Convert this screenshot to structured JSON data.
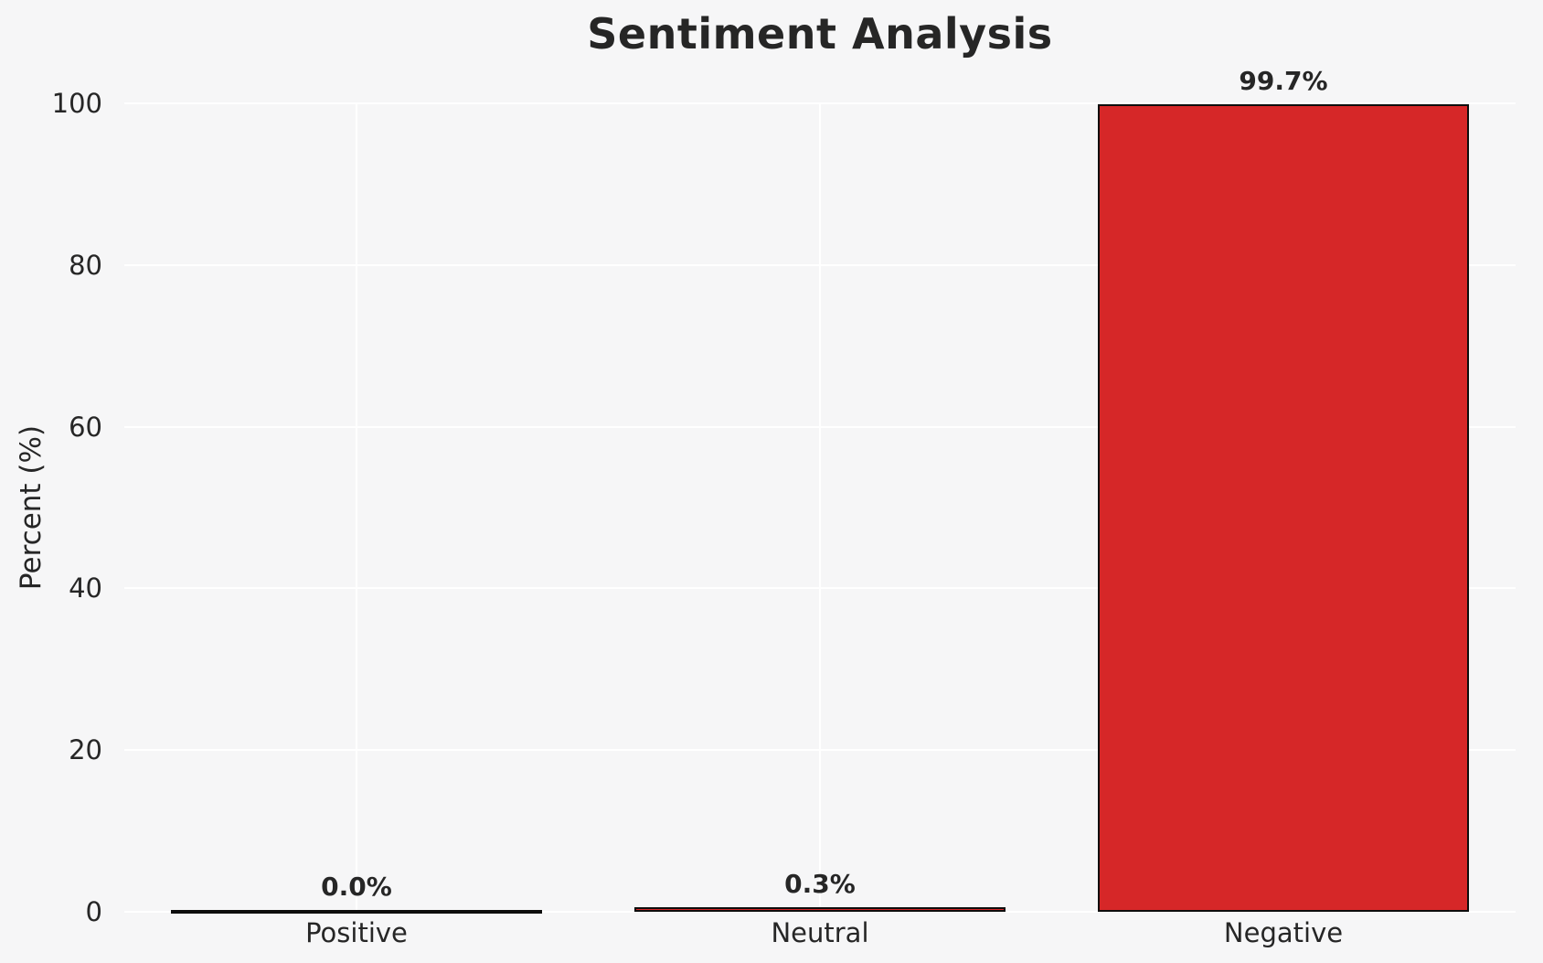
{
  "chart_data": {
    "type": "bar",
    "title": "Sentiment Analysis",
    "xlabel": "",
    "ylabel": "Percent (%)",
    "categories": [
      "Positive",
      "Neutral",
      "Negative"
    ],
    "values": [
      0.0,
      0.3,
      99.7
    ],
    "bar_labels": [
      "0.0%",
      "0.3%",
      "99.7%"
    ],
    "yticks": [
      0,
      20,
      40,
      60,
      80,
      100
    ],
    "ytick_labels": [
      "0",
      "20",
      "40",
      "60",
      "80",
      "100"
    ],
    "ylim": [
      0,
      100
    ],
    "grid": true,
    "gridline_orientation": "horizontal-and-vertical",
    "legend": false,
    "colors": {
      "bar_fill": "#d62728",
      "bar_edge": "#0d0d0d",
      "background": "#f6f6f7",
      "gridline": "#ffffff",
      "text": "#262626"
    }
  }
}
